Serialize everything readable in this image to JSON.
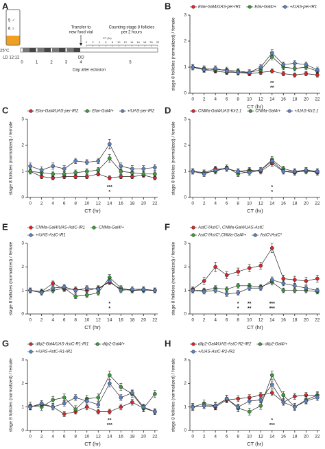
{
  "schematic": {
    "label": "A",
    "vial_labels": [
      "5 ♂",
      "6 ♀"
    ],
    "temperature": "25°C",
    "ld": "LD 12:12",
    "dd": "DD",
    "transfer": [
      "Transfer to",
      "new food vial"
    ],
    "counting": [
      "Counting stage 8 follicles",
      "per 2 hours"
    ],
    "ct_label": "CT (hr)",
    "ct_ticks": [
      0,
      2,
      4,
      6,
      8,
      10,
      12,
      14,
      16,
      18,
      20,
      22
    ],
    "days": [
      0,
      1,
      2,
      3,
      4,
      5
    ],
    "day_label": "Day after eclosion"
  },
  "chart_data": [
    {
      "type": "line",
      "label": "B",
      "ylabel": "stage 8 follicles (normalized) / female",
      "xlabel": "CT (hr)",
      "x": [
        0,
        2,
        4,
        6,
        8,
        10,
        12,
        14,
        16,
        18,
        20,
        22
      ],
      "xlim": [
        -0.5,
        22.5
      ],
      "xticks": [
        0,
        2,
        4,
        6,
        8,
        10,
        12,
        14,
        16,
        18,
        20,
        22
      ],
      "ylim": [
        0,
        3
      ],
      "yticks": [
        0,
        1,
        2,
        3
      ],
      "series": [
        {
          "name": "Elav-Gal4/UAS-per-IR1",
          "color": "#d9262b",
          "values": [
            1.0,
            0.9,
            0.85,
            0.8,
            0.8,
            0.75,
            0.8,
            0.85,
            0.75,
            0.7,
            0.75,
            0.7
          ],
          "errors": [
            0.1,
            0.08,
            0.08,
            0.08,
            0.08,
            0.08,
            0.08,
            0.08,
            0.08,
            0.08,
            0.08,
            0.08
          ]
        },
        {
          "name": "Elav-Gal4/+",
          "color": "#3c9a3c",
          "values": [
            1.0,
            0.95,
            0.9,
            0.9,
            0.85,
            0.8,
            0.9,
            1.4,
            1.0,
            0.95,
            1.0,
            0.85
          ],
          "errors": [
            0.1,
            0.1,
            0.1,
            0.1,
            0.1,
            0.1,
            0.1,
            0.12,
            0.1,
            0.1,
            0.1,
            0.1
          ]
        },
        {
          "name": "+/UAS-per-IR1",
          "color": "#5b80c4",
          "values": [
            1.0,
            0.9,
            0.95,
            0.85,
            0.8,
            0.8,
            1.0,
            1.55,
            1.1,
            1.15,
            1.1,
            0.9
          ],
          "errors": [
            0.1,
            0.1,
            0.1,
            0.1,
            0.1,
            0.1,
            0.1,
            0.12,
            0.1,
            0.1,
            0.1,
            0.1
          ]
        }
      ],
      "annotations": [
        {
          "x": 14,
          "text": "**",
          "color": "#2ab0b0"
        },
        {
          "x": 14,
          "text": "**",
          "color": "#3aa040"
        }
      ]
    },
    {
      "type": "line",
      "label": "C",
      "ylabel": "stage 8 follicles (normalized) / female",
      "xlabel": "CT (hr)",
      "x": [
        0,
        2,
        4,
        6,
        8,
        10,
        12,
        14,
        16,
        18,
        20,
        22
      ],
      "xlim": [
        -0.5,
        22.5
      ],
      "xticks": [
        0,
        2,
        4,
        6,
        8,
        10,
        12,
        14,
        16,
        18,
        20,
        22
      ],
      "ylim": [
        0,
        3
      ],
      "yticks": [
        0,
        1,
        2,
        3
      ],
      "series": [
        {
          "name": "Elav-Gal4/UAS-per-IR2",
          "color": "#d9262b",
          "values": [
            1.0,
            0.8,
            0.75,
            0.8,
            0.8,
            0.8,
            0.9,
            0.75,
            0.8,
            0.8,
            0.85,
            0.75
          ],
          "errors": [
            0.1,
            0.08,
            0.08,
            0.08,
            0.08,
            0.08,
            0.08,
            0.08,
            0.08,
            0.08,
            0.08,
            0.08
          ]
        },
        {
          "name": "Elav-Gal4/+",
          "color": "#3c9a3c",
          "values": [
            1.0,
            0.95,
            0.9,
            0.9,
            0.95,
            1.0,
            1.05,
            1.5,
            1.0,
            0.95,
            0.9,
            0.9
          ],
          "errors": [
            0.1,
            0.1,
            0.1,
            0.1,
            0.1,
            0.1,
            0.1,
            0.15,
            0.1,
            0.1,
            0.1,
            0.1
          ]
        },
        {
          "name": "+/UAS-per-IR2",
          "color": "#5b80c4",
          "values": [
            1.2,
            1.05,
            1.2,
            1.1,
            1.4,
            1.35,
            1.4,
            2.05,
            1.2,
            1.1,
            1.1,
            1.15
          ],
          "errors": [
            0.12,
            0.12,
            0.12,
            0.12,
            0.1,
            0.1,
            0.1,
            0.18,
            0.12,
            0.12,
            0.12,
            0.12
          ]
        }
      ],
      "annotations": [
        {
          "x": 14,
          "text": "***",
          "color": "#2ab0b0"
        },
        {
          "x": 14,
          "text": "*",
          "color": "#3aa040"
        }
      ]
    },
    {
      "type": "line",
      "label": "D",
      "ylabel": "stage 8 follicles (normalized) / female",
      "xlabel": "CT (hr)",
      "x": [
        0,
        2,
        4,
        6,
        8,
        10,
        12,
        14,
        16,
        18,
        20,
        22
      ],
      "xlim": [
        -0.5,
        22.5
      ],
      "xticks": [
        0,
        2,
        4,
        6,
        8,
        10,
        12,
        14,
        16,
        18,
        20,
        22
      ],
      "ylim": [
        0,
        3
      ],
      "yticks": [
        0,
        1,
        2,
        3
      ],
      "series": [
        {
          "name": "CNMa-Gal4/UAS-Kir2.1",
          "color": "#d9262b",
          "values": [
            1.0,
            0.95,
            1.1,
            1.1,
            1.0,
            1.05,
            1.0,
            1.3,
            1.0,
            0.95,
            1.05,
            0.95
          ],
          "errors": [
            0.1,
            0.1,
            0.1,
            0.1,
            0.1,
            0.1,
            0.1,
            0.1,
            0.1,
            0.1,
            0.1,
            0.1
          ]
        },
        {
          "name": "CNMa-Gal4/+",
          "color": "#3c9a3c",
          "values": [
            1.0,
            0.95,
            1.0,
            1.15,
            0.9,
            1.0,
            1.05,
            1.45,
            1.1,
            1.0,
            1.0,
            1.0
          ],
          "errors": [
            0.1,
            0.1,
            0.1,
            0.1,
            0.1,
            0.1,
            0.1,
            0.12,
            0.1,
            0.1,
            0.1,
            0.1
          ]
        },
        {
          "name": "+/UAS-Kir2.1",
          "color": "#5b80c4",
          "values": [
            1.0,
            0.9,
            1.05,
            1.1,
            1.0,
            0.95,
            1.05,
            1.4,
            1.0,
            1.0,
            1.05,
            1.0
          ],
          "errors": [
            0.1,
            0.1,
            0.1,
            0.1,
            0.1,
            0.1,
            0.1,
            0.12,
            0.1,
            0.1,
            0.1,
            0.1
          ]
        }
      ],
      "annotations": [
        {
          "x": 14,
          "text": "*",
          "color": "#2ab0b0"
        },
        {
          "x": 14,
          "text": "*",
          "color": "#3aa040"
        }
      ]
    },
    {
      "type": "line",
      "label": "E",
      "ylabel": "stage 8 follicles (normalized) / female",
      "xlabel": "CT (hr)",
      "x": [
        0,
        2,
        4,
        6,
        8,
        10,
        12,
        14,
        16,
        18,
        20,
        22
      ],
      "xlim": [
        -0.5,
        22.5
      ],
      "xticks": [
        0,
        2,
        4,
        6,
        8,
        10,
        12,
        14,
        16,
        18,
        20,
        22
      ],
      "ylim": [
        0,
        3
      ],
      "yticks": [
        0,
        1,
        2,
        3
      ],
      "series": [
        {
          "name": "CNMa-Gal4/UAS-AstC-IR1",
          "color": "#d9262b",
          "values": [
            1.0,
            0.95,
            1.3,
            1.05,
            1.05,
            1.0,
            1.1,
            1.35,
            1.05,
            1.0,
            1.05,
            1.0
          ],
          "errors": [
            0.1,
            0.1,
            0.1,
            0.1,
            0.1,
            0.1,
            0.1,
            0.1,
            0.1,
            0.1,
            0.1,
            0.1
          ]
        },
        {
          "name": "CNMa-Gal4/+",
          "color": "#3c9a3c",
          "values": [
            1.0,
            0.95,
            1.0,
            1.1,
            0.75,
            0.8,
            0.9,
            1.55,
            1.1,
            1.0,
            1.0,
            1.0
          ],
          "errors": [
            0.1,
            0.1,
            0.1,
            0.1,
            0.1,
            0.1,
            0.1,
            0.12,
            0.1,
            0.1,
            0.1,
            0.1
          ]
        },
        {
          "name": "+/UAS-AstC-IR1",
          "color": "#5b80c4",
          "values": [
            1.0,
            0.9,
            1.1,
            1.15,
            1.0,
            1.1,
            1.05,
            1.4,
            1.0,
            1.05,
            1.05,
            1.0
          ],
          "errors": [
            0.1,
            0.1,
            0.1,
            0.1,
            0.1,
            0.1,
            0.1,
            0.12,
            0.1,
            0.1,
            0.1,
            0.1
          ]
        }
      ],
      "annotations": [
        {
          "x": 14,
          "text": "*",
          "color": "#2ab0b0"
        },
        {
          "x": 14,
          "text": "*",
          "color": "#3aa040"
        }
      ]
    },
    {
      "type": "line",
      "label": "F",
      "ylabel": "stage 8 follicles (normalized) / female",
      "xlabel": "CT (hr)",
      "x": [
        0,
        2,
        4,
        6,
        8,
        10,
        12,
        14,
        16,
        18,
        20,
        22
      ],
      "xlim": [
        -0.5,
        22.5
      ],
      "xticks": [
        0,
        2,
        4,
        6,
        8,
        10,
        12,
        14,
        16,
        18,
        20,
        22
      ],
      "ylim": [
        0,
        3
      ],
      "yticks": [
        0,
        1,
        2,
        3
      ],
      "series": [
        {
          "name": "AstC¹/AstC¹, CNMa-Gal4/UAS-AstC",
          "color": "#d9262b",
          "values": [
            1.05,
            1.4,
            2.0,
            1.65,
            1.8,
            1.95,
            2.05,
            2.8,
            1.5,
            1.45,
            1.4,
            1.5
          ],
          "errors": [
            0.1,
            0.15,
            0.2,
            0.15,
            0.15,
            0.15,
            0.15,
            0.2,
            0.15,
            0.15,
            0.15,
            0.15
          ]
        },
        {
          "name": "AstC¹/AstC¹,CNMa-Gal4/+",
          "color": "#3c9a3c",
          "values": [
            1.0,
            1.0,
            1.1,
            1.05,
            1.2,
            1.2,
            1.15,
            1.35,
            1.0,
            1.0,
            1.0,
            0.95
          ],
          "errors": [
            0.1,
            0.1,
            0.1,
            0.1,
            0.1,
            0.1,
            0.1,
            0.12,
            0.1,
            0.1,
            0.1,
            0.1
          ]
        },
        {
          "name": "AstC¹/AstC¹",
          "color": "#5b80c4",
          "values": [
            1.0,
            0.95,
            1.0,
            0.85,
            0.9,
            1.1,
            1.1,
            1.45,
            1.3,
            1.2,
            1.1,
            1.0
          ],
          "errors": [
            0.1,
            0.1,
            0.1,
            0.1,
            0.1,
            0.1,
            0.1,
            0.12,
            0.1,
            0.1,
            0.1,
            0.1
          ]
        }
      ],
      "annotations": [
        {
          "x": 8,
          "text": "*",
          "color": "#2ab0b0"
        },
        {
          "x": 8,
          "text": "*",
          "color": "#3aa040"
        },
        {
          "x": 10,
          "text": "**",
          "color": "#2ab0b0"
        },
        {
          "x": 10,
          "text": "**",
          "color": "#3aa040"
        },
        {
          "x": 14,
          "text": "***",
          "color": "#2ab0b0"
        },
        {
          "x": 14,
          "text": "***",
          "color": "#3aa040"
        }
      ]
    },
    {
      "type": "line",
      "label": "G",
      "ylabel": "stage 8 follicles (normalized) / female",
      "xlabel": "CT (hr)",
      "x": [
        0,
        2,
        4,
        6,
        8,
        10,
        12,
        14,
        16,
        18,
        20,
        22
      ],
      "xlim": [
        -0.5,
        22.5
      ],
      "xticks": [
        0,
        2,
        4,
        6,
        8,
        10,
        12,
        14,
        16,
        18,
        20,
        22
      ],
      "ylim": [
        0,
        3
      ],
      "yticks": [
        0,
        1,
        2,
        3
      ],
      "series": [
        {
          "name": "dilp2-Gal4/UAS-AstC-R1-IR1",
          "color": "#d9262b",
          "values": [
            1.0,
            1.1,
            1.0,
            0.7,
            0.8,
            1.0,
            0.8,
            0.8,
            1.0,
            1.2,
            0.95,
            0.8
          ],
          "errors": [
            0.12,
            0.12,
            0.12,
            0.1,
            0.1,
            0.12,
            0.1,
            0.1,
            0.12,
            0.12,
            0.12,
            0.1
          ]
        },
        {
          "name": "dilp2-Gal4/+",
          "color": "#3c9a3c",
          "values": [
            1.05,
            1.0,
            1.3,
            1.4,
            0.9,
            1.35,
            1.4,
            2.35,
            1.85,
            1.55,
            0.95,
            1.55
          ],
          "errors": [
            0.15,
            0.15,
            0.15,
            0.15,
            0.15,
            0.15,
            0.15,
            0.18,
            0.15,
            0.15,
            0.15,
            0.15
          ]
        },
        {
          "name": "+/UAS-AstC-R1-IR1",
          "color": "#5b80c4",
          "values": [
            1.0,
            1.15,
            1.0,
            1.15,
            1.4,
            1.25,
            1.1,
            2.0,
            1.4,
            1.6,
            1.0,
            0.8
          ],
          "errors": [
            0.12,
            0.12,
            0.12,
            0.12,
            0.12,
            0.12,
            0.12,
            0.15,
            0.12,
            0.12,
            0.12,
            0.12
          ]
        }
      ],
      "annotations": [
        {
          "x": 14,
          "text": "**",
          "color": "#2ab0b0"
        },
        {
          "x": 14,
          "text": "***",
          "color": "#3aa040"
        }
      ]
    },
    {
      "type": "line",
      "label": "H",
      "ylabel": "stage 8 follicles (normalized) / female",
      "xlabel": "CT (hr)",
      "x": [
        0,
        2,
        4,
        6,
        8,
        10,
        12,
        14,
        16,
        18,
        20,
        22
      ],
      "xlim": [
        -0.5,
        22.5
      ],
      "xticks": [
        0,
        2,
        4,
        6,
        8,
        10,
        12,
        14,
        16,
        18,
        20,
        22
      ],
      "ylim": [
        0,
        3
      ],
      "yticks": [
        0,
        1,
        2,
        3
      ],
      "series": [
        {
          "name": "dilp2-Gal4/UAS-AstC-R2-IR2",
          "color": "#d9262b",
          "values": [
            1.0,
            1.05,
            1.0,
            1.3,
            1.35,
            1.4,
            1.5,
            1.6,
            1.2,
            1.45,
            1.5,
            1.5
          ],
          "errors": [
            0.12,
            0.12,
            0.12,
            0.12,
            0.12,
            0.12,
            0.12,
            0.12,
            0.12,
            0.12,
            0.12,
            0.12
          ]
        },
        {
          "name": "dilp2-Gal4/+",
          "color": "#3c9a3c",
          "values": [
            1.0,
            1.15,
            1.05,
            1.35,
            0.95,
            0.8,
            1.05,
            2.35,
            1.5,
            1.0,
            1.3,
            1.5
          ],
          "errors": [
            0.15,
            0.15,
            0.15,
            0.15,
            0.15,
            0.15,
            0.15,
            0.18,
            0.15,
            0.15,
            0.15,
            0.15
          ]
        },
        {
          "name": "+/UAS-AstC-R2-IR2",
          "color": "#5b80c4",
          "values": [
            1.0,
            1.05,
            1.05,
            1.35,
            1.0,
            1.25,
            1.3,
            1.95,
            1.2,
            1.0,
            1.25,
            1.4
          ],
          "errors": [
            0.12,
            0.12,
            0.12,
            0.12,
            0.12,
            0.12,
            0.12,
            0.15,
            0.12,
            0.12,
            0.12,
            0.12
          ]
        }
      ],
      "annotations": [
        {
          "x": 14,
          "text": "*",
          "color": "#2ab0b0"
        },
        {
          "x": 14,
          "text": "***",
          "color": "#3aa040"
        }
      ]
    }
  ]
}
